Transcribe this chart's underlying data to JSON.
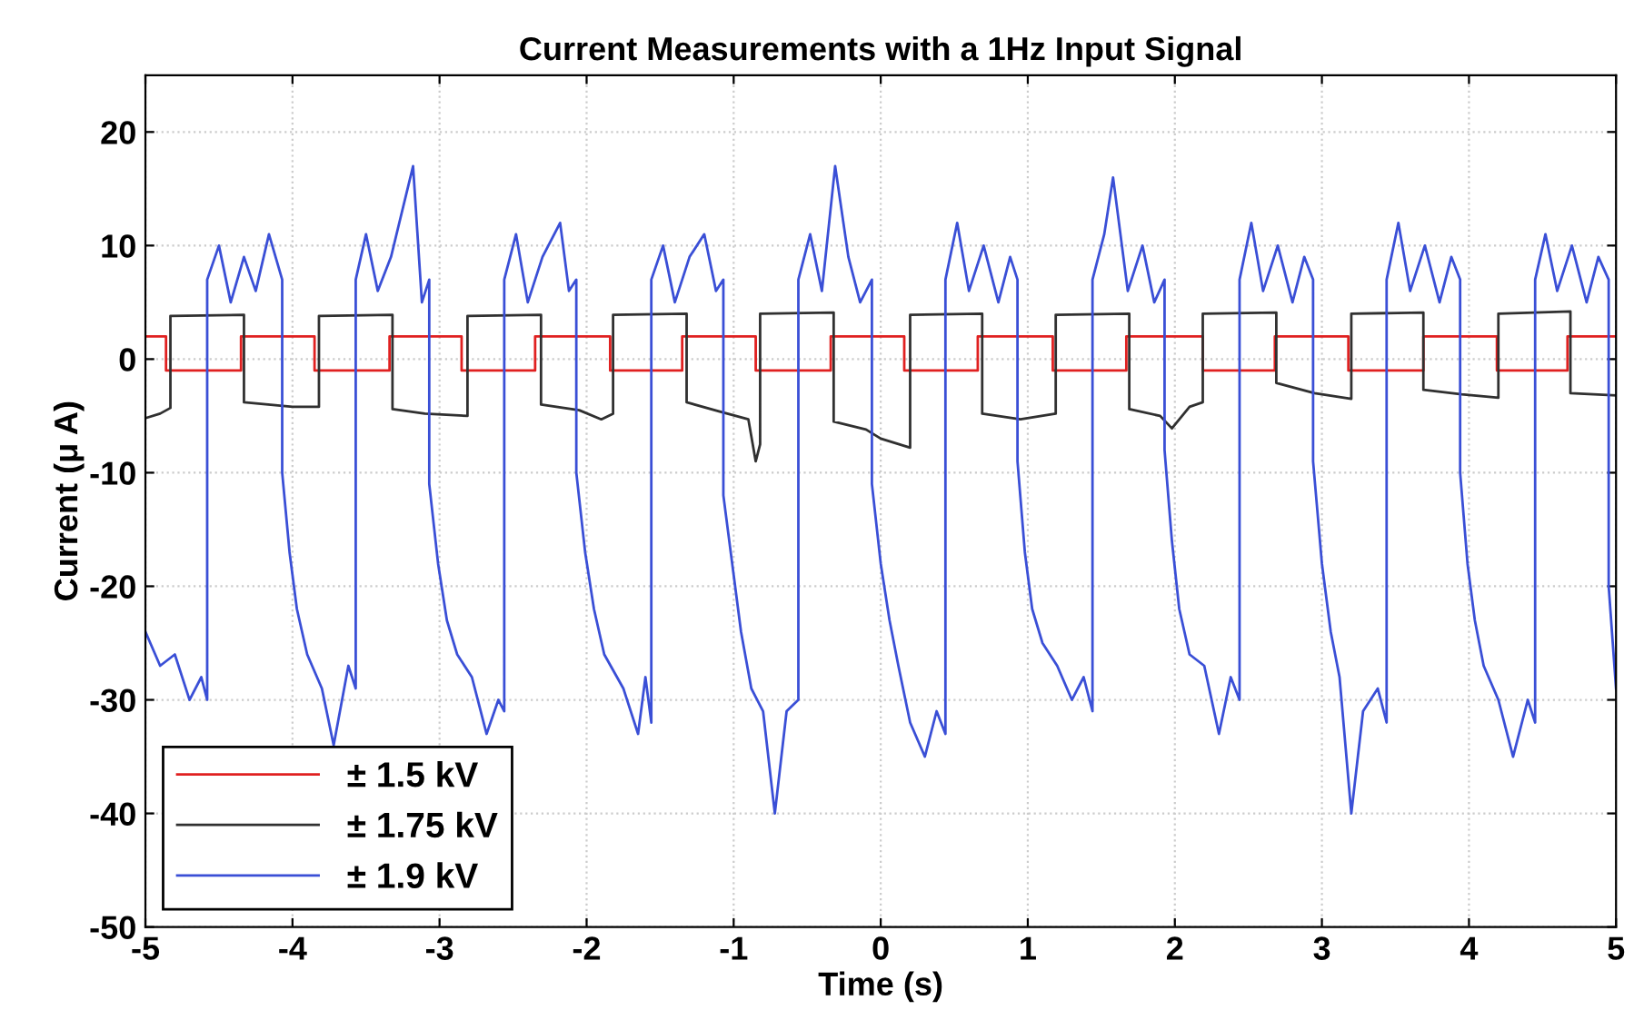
{
  "chart_data": {
    "type": "line",
    "title": "Current Measurements with a 1Hz Input Signal",
    "xlabel": "Time (s)",
    "ylabel": "Current (μ A)",
    "xlim": [
      -5,
      5
    ],
    "ylim": [
      -50,
      25
    ],
    "xticks": [
      -5,
      -4,
      -3,
      -2,
      -1,
      0,
      1,
      2,
      3,
      4,
      5
    ],
    "yticks": [
      -50,
      -40,
      -30,
      -20,
      -10,
      0,
      10,
      20
    ],
    "grid": true,
    "legend": "bottom left",
    "marker": "none",
    "line_style": "solid",
    "series": [
      {
        "name": "± 1.5 kV",
        "color": "#e02020",
        "x": [
          -5,
          -4.86,
          -4.86,
          -4.35,
          -4.35,
          -3.85,
          -3.85,
          -3.34,
          -3.34,
          -2.85,
          -2.85,
          -2.35,
          -2.35,
          -1.84,
          -1.84,
          -1.35,
          -1.35,
          -0.85,
          -0.85,
          -0.34,
          -0.34,
          0.16,
          0.16,
          0.66,
          0.66,
          1.17,
          1.17,
          1.67,
          1.67,
          2.19,
          2.19,
          2.68,
          2.68,
          3.18,
          3.18,
          3.69,
          3.69,
          4.19,
          4.19,
          4.67,
          4.67,
          5
        ],
        "values": [
          2,
          2,
          -1,
          -1,
          2,
          2,
          -1,
          -1,
          2,
          2,
          -1,
          -1,
          2,
          2,
          -1,
          -1,
          2,
          2,
          -1,
          -1,
          2,
          2,
          -1,
          -1,
          2,
          2,
          -1,
          -1,
          2,
          2,
          -1,
          -1,
          2,
          2,
          -1,
          -1,
          2,
          2,
          -1,
          -1,
          2,
          2
        ]
      },
      {
        "name": "± 1.75 kV",
        "color": "#303030",
        "x": [
          -5,
          -4.9,
          -4.83,
          -4.83,
          -4.33,
          -4.33,
          -4.0,
          -3.82,
          -3.82,
          -3.32,
          -3.32,
          -3.1,
          -2.81,
          -2.81,
          -2.31,
          -2.31,
          -2.05,
          -1.9,
          -1.82,
          -1.82,
          -1.32,
          -1.32,
          -1.1,
          -0.9,
          -0.85,
          -0.82,
          -0.82,
          -0.32,
          -0.32,
          -0.1,
          0.0,
          0.2,
          0.2,
          0.69,
          0.69,
          0.95,
          1.19,
          1.19,
          1.69,
          1.69,
          1.9,
          1.98,
          2.1,
          2.19,
          2.19,
          2.69,
          2.69,
          2.95,
          3.2,
          3.2,
          3.69,
          3.69,
          3.95,
          4.2,
          4.2,
          4.69,
          4.69,
          5
        ],
        "values": [
          -5.2,
          -4.8,
          -4.3,
          3.8,
          3.9,
          -3.8,
          -4.2,
          -4.2,
          3.8,
          3.9,
          -4.4,
          -4.8,
          -5.0,
          3.8,
          3.9,
          -4.0,
          -4.5,
          -5.3,
          -4.8,
          3.9,
          4.0,
          -3.8,
          -4.6,
          -5.3,
          -9,
          -7.5,
          4.0,
          4.1,
          -5.5,
          -6.2,
          -7.0,
          -7.8,
          3.9,
          4.0,
          -4.8,
          -5.3,
          -4.8,
          3.9,
          4.0,
          -4.4,
          -5.0,
          -6.1,
          -4.2,
          -3.8,
          4.0,
          4.1,
          -2.1,
          -3.0,
          -3.5,
          4.0,
          4.1,
          -2.7,
          -3.1,
          -3.4,
          4.0,
          4.2,
          -3.0,
          -3.2
        ]
      },
      {
        "name": "± 1.9 kV",
        "color": "#3a4fd6",
        "x": [
          -5,
          -4.9,
          -4.8,
          -4.7,
          -4.62,
          -4.58,
          -4.58,
          -4.5,
          -4.42,
          -4.33,
          -4.25,
          -4.16,
          -4.07,
          -4.07,
          -4.02,
          -3.97,
          -3.9,
          -3.8,
          -3.72,
          -3.62,
          -3.57,
          -3.57,
          -3.5,
          -3.42,
          -3.33,
          -3.18,
          -3.12,
          -3.07,
          -3.07,
          -3.01,
          -2.95,
          -2.88,
          -2.78,
          -2.68,
          -2.6,
          -2.56,
          -2.56,
          -2.48,
          -2.4,
          -2.3,
          -2.18,
          -2.12,
          -2.07,
          -2.07,
          -2.01,
          -1.95,
          -1.88,
          -1.75,
          -1.65,
          -1.6,
          -1.56,
          -1.56,
          -1.48,
          -1.4,
          -1.3,
          -1.2,
          -1.12,
          -1.07,
          -1.07,
          -1.0,
          -0.95,
          -0.88,
          -0.8,
          -0.72,
          -0.64,
          -0.56,
          -0.56,
          -0.48,
          -0.4,
          -0.31,
          -0.22,
          -0.14,
          -0.06,
          -0.06,
          0.0,
          0.06,
          0.12,
          0.2,
          0.3,
          0.38,
          0.44,
          0.44,
          0.52,
          0.6,
          0.7,
          0.8,
          0.88,
          0.93,
          0.93,
          0.98,
          1.03,
          1.1,
          1.2,
          1.3,
          1.38,
          1.44,
          1.44,
          1.52,
          1.58,
          1.68,
          1.78,
          1.86,
          1.93,
          1.93,
          1.98,
          2.03,
          2.1,
          2.2,
          2.3,
          2.38,
          2.44,
          2.44,
          2.52,
          2.6,
          2.7,
          2.8,
          2.88,
          2.94,
          2.94,
          3.0,
          3.06,
          3.12,
          3.2,
          3.28,
          3.38,
          3.44,
          3.44,
          3.52,
          3.6,
          3.7,
          3.8,
          3.88,
          3.94,
          3.94,
          3.99,
          4.04,
          4.1,
          4.2,
          4.3,
          4.4,
          4.45,
          4.45,
          4.52,
          4.6,
          4.7,
          4.8,
          4.88,
          4.95,
          4.95,
          5
        ],
        "values": [
          -24,
          -27,
          -26,
          -30,
          -28,
          -30,
          7,
          10,
          5,
          9,
          6,
          11,
          7,
          -10,
          -17,
          -22,
          -26,
          -29,
          -34,
          -27,
          -29,
          7,
          11,
          6,
          9,
          17,
          5,
          7,
          -11,
          -18,
          -23,
          -26,
          -28,
          -33,
          -30,
          -31,
          7,
          11,
          5,
          9,
          12,
          6,
          7,
          -10,
          -17,
          -22,
          -26,
          -29,
          -33,
          -28,
          -32,
          7,
          10,
          5,
          9,
          11,
          6,
          7,
          -12,
          -19,
          -24,
          -29,
          -31,
          -40,
          -31,
          -30,
          7,
          11,
          6,
          17,
          9,
          5,
          7,
          -11,
          -18,
          -23,
          -27,
          -32,
          -35,
          -31,
          -33,
          7,
          12,
          6,
          10,
          5,
          9,
          7,
          -9,
          -17,
          -22,
          -25,
          -27,
          -30,
          -28,
          -31,
          7,
          11,
          16,
          6,
          10,
          5,
          7,
          -8,
          -16,
          -22,
          -26,
          -27,
          -33,
          -28,
          -30,
          7,
          12,
          6,
          10,
          5,
          9,
          7,
          -9,
          -18,
          -24,
          -28,
          -40,
          -31,
          -29,
          -32,
          7,
          12,
          6,
          10,
          5,
          9,
          7,
          -10,
          -18,
          -23,
          -27,
          -30,
          -35,
          -30,
          -32,
          7,
          11,
          6,
          10,
          5,
          9,
          7,
          -20,
          -29
        ]
      }
    ]
  }
}
